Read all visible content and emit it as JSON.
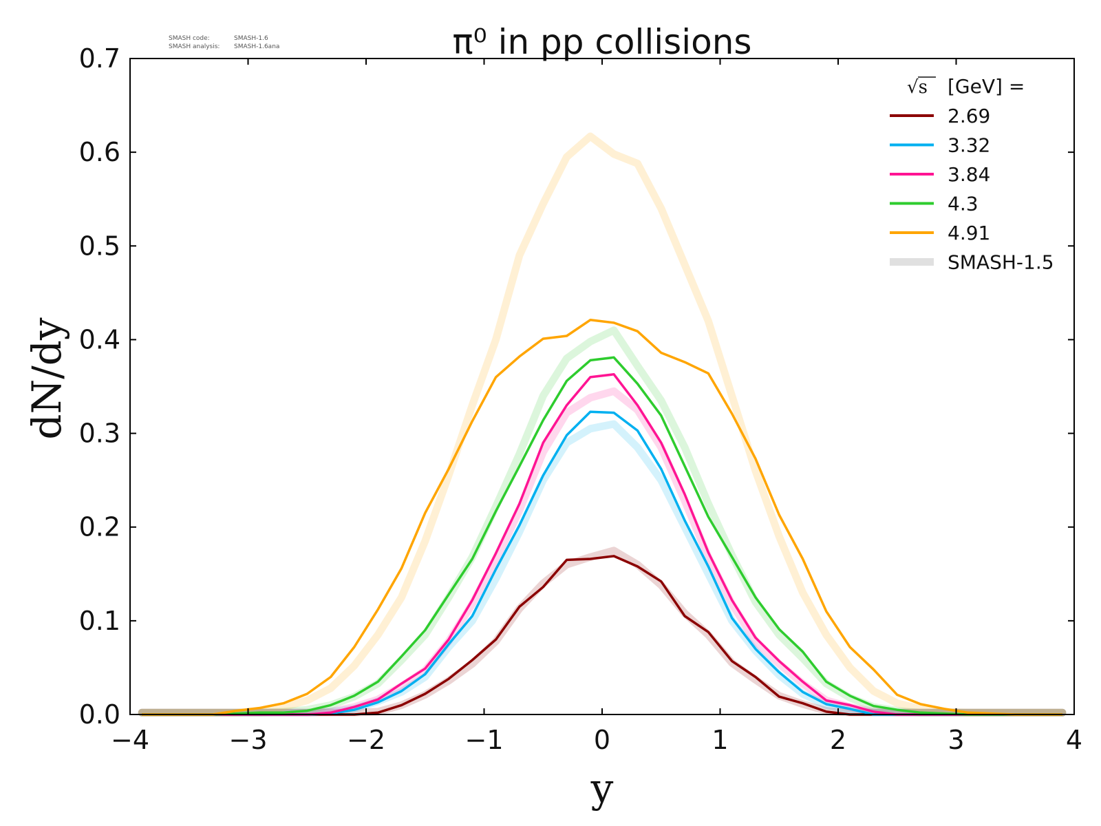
{
  "meta": {
    "code_label": "SMASH code:",
    "code_value": "SMASH-1.6",
    "analysis_label": "SMASH analysis:",
    "analysis_value": "SMASH-1.6ana"
  },
  "chart_data": {
    "type": "line",
    "title": "π⁰ in pp collisions",
    "xlabel": "y",
    "ylabel": "dN/dy",
    "xlim": [
      -4,
      4
    ],
    "ylim": [
      0,
      0.7
    ],
    "xticks": [
      -4,
      -3,
      -2,
      -1,
      0,
      1,
      2,
      3,
      4
    ],
    "xtick_labels": [
      "−4",
      "−3",
      "−2",
      "−1",
      "0",
      "1",
      "2",
      "3",
      "4"
    ],
    "yticks": [
      0.0,
      0.1,
      0.2,
      0.3,
      0.4,
      0.5,
      0.6,
      0.7
    ],
    "ytick_labels": [
      "0.0",
      "0.1",
      "0.2",
      "0.3",
      "0.4",
      "0.5",
      "0.6",
      "0.7"
    ],
    "legend": {
      "title_sqrt": "√s",
      "title_rest": "[GeV] =",
      "placement": "top-right",
      "reference_label": "SMASH-1.5",
      "reference_color": "#d6d6d6"
    },
    "x": [
      -3.9,
      -3.7,
      -3.5,
      -3.3,
      -3.1,
      -2.9,
      -2.7,
      -2.5,
      -2.3,
      -2.1,
      -1.9,
      -1.7,
      -1.5,
      -1.3,
      -1.1,
      -0.9,
      -0.7,
      -0.5,
      -0.3,
      -0.1,
      0.1,
      0.3,
      0.5,
      0.7,
      0.9,
      1.1,
      1.3,
      1.5,
      1.7,
      1.9,
      2.1,
      2.3,
      2.5,
      2.7,
      2.9,
      3.1,
      3.3,
      3.5,
      3.7,
      3.9
    ],
    "series": [
      {
        "name": "2.69",
        "color": "#8b0000",
        "values": [
          0,
          0,
          0,
          0,
          0,
          0,
          0,
          0,
          0,
          0,
          0.002,
          0.01,
          0.022,
          0.038,
          0.058,
          0.08,
          0.115,
          0.136,
          0.165,
          0.166,
          0.169,
          0.158,
          0.142,
          0.105,
          0.088,
          0.057,
          0.04,
          0.019,
          0.012,
          0.003,
          0,
          0,
          0,
          0,
          0,
          0,
          0,
          0,
          0,
          0
        ],
        "reference": [
          0.002,
          0.002,
          0.002,
          0.002,
          0.002,
          0.002,
          0.002,
          0.002,
          0.002,
          0.002,
          0.003,
          0.01,
          0.021,
          0.036,
          0.054,
          0.078,
          0.113,
          0.14,
          0.16,
          0.168,
          0.175,
          0.16,
          0.138,
          0.108,
          0.085,
          0.055,
          0.037,
          0.02,
          0.011,
          0.004,
          0.002,
          0.002,
          0.002,
          0.002,
          0.002,
          0.002,
          0.002,
          0.002,
          0.002,
          0.002
        ]
      },
      {
        "name": "3.32",
        "color": "#00b0f0",
        "values": [
          0,
          0,
          0,
          0,
          0,
          0,
          0,
          0,
          0.001,
          0.005,
          0.013,
          0.025,
          0.043,
          0.075,
          0.105,
          0.155,
          0.202,
          0.255,
          0.298,
          0.323,
          0.322,
          0.303,
          0.262,
          0.207,
          0.158,
          0.103,
          0.07,
          0.045,
          0.024,
          0.011,
          0.006,
          0,
          0,
          0,
          0,
          0,
          0,
          0,
          0,
          0
        ],
        "reference": [
          0.002,
          0.002,
          0.002,
          0.002,
          0.002,
          0.002,
          0.002,
          0.002,
          0.003,
          0.006,
          0.014,
          0.024,
          0.04,
          0.072,
          0.1,
          0.145,
          0.195,
          0.25,
          0.29,
          0.305,
          0.31,
          0.285,
          0.25,
          0.2,
          0.15,
          0.1,
          0.068,
          0.042,
          0.022,
          0.01,
          0.005,
          0.002,
          0.002,
          0.002,
          0.002,
          0.002,
          0.002,
          0.002,
          0.002,
          0.002
        ]
      },
      {
        "name": "3.84",
        "color": "#ff1493",
        "values": [
          0,
          0,
          0,
          0,
          0,
          0,
          0,
          0,
          0.002,
          0.008,
          0.016,
          0.033,
          0.049,
          0.08,
          0.122,
          0.172,
          0.225,
          0.29,
          0.33,
          0.36,
          0.363,
          0.33,
          0.29,
          0.235,
          0.173,
          0.122,
          0.082,
          0.057,
          0.035,
          0.015,
          0.01,
          0.003,
          0,
          0,
          0,
          0,
          0,
          0,
          0,
          0
        ],
        "reference": [
          0.002,
          0.002,
          0.002,
          0.002,
          0.002,
          0.002,
          0.002,
          0.002,
          0.003,
          0.008,
          0.016,
          0.03,
          0.047,
          0.078,
          0.118,
          0.165,
          0.218,
          0.28,
          0.322,
          0.338,
          0.345,
          0.325,
          0.285,
          0.228,
          0.168,
          0.118,
          0.078,
          0.054,
          0.033,
          0.015,
          0.008,
          0.003,
          0.002,
          0.002,
          0.002,
          0.002,
          0.002,
          0.002,
          0.002,
          0.002
        ]
      },
      {
        "name": "4.3",
        "color": "#2ecc2e",
        "values": [
          0,
          0,
          0,
          0,
          0.001,
          0.002,
          0.002,
          0.004,
          0.01,
          0.02,
          0.035,
          0.062,
          0.09,
          0.128,
          0.166,
          0.217,
          0.265,
          0.314,
          0.356,
          0.378,
          0.381,
          0.353,
          0.319,
          0.265,
          0.211,
          0.168,
          0.125,
          0.091,
          0.067,
          0.035,
          0.02,
          0.009,
          0.005,
          0.002,
          0.001,
          0,
          0,
          0,
          0,
          0
        ],
        "reference": [
          0.002,
          0.002,
          0.002,
          0.002,
          0.002,
          0.002,
          0.003,
          0.005,
          0.01,
          0.019,
          0.033,
          0.058,
          0.085,
          0.125,
          0.168,
          0.222,
          0.278,
          0.34,
          0.38,
          0.398,
          0.41,
          0.372,
          0.335,
          0.285,
          0.225,
          0.17,
          0.12,
          0.085,
          0.06,
          0.033,
          0.018,
          0.008,
          0.004,
          0.002,
          0.002,
          0.002,
          0.002,
          0.002,
          0.002,
          0.002
        ]
      },
      {
        "name": "4.91",
        "color": "#ffa500",
        "values": [
          0,
          0,
          0,
          0,
          0.004,
          0.007,
          0.012,
          0.022,
          0.04,
          0.072,
          0.112,
          0.156,
          0.215,
          0.262,
          0.313,
          0.36,
          0.382,
          0.401,
          0.404,
          0.421,
          0.418,
          0.409,
          0.386,
          0.376,
          0.364,
          0.321,
          0.273,
          0.213,
          0.166,
          0.11,
          0.072,
          0.048,
          0.021,
          0.011,
          0.006,
          0.002,
          0.001,
          0,
          0,
          0
        ],
        "reference": [
          0.002,
          0.002,
          0.002,
          0.002,
          0.002,
          0.004,
          0.008,
          0.015,
          0.028,
          0.052,
          0.085,
          0.125,
          0.185,
          0.255,
          0.33,
          0.4,
          0.49,
          0.545,
          0.595,
          0.617,
          0.598,
          0.588,
          0.54,
          0.48,
          0.42,
          0.34,
          0.26,
          0.19,
          0.13,
          0.085,
          0.05,
          0.025,
          0.012,
          0.006,
          0.003,
          0.002,
          0.002,
          0.002,
          0.002,
          0.002
        ]
      }
    ]
  }
}
